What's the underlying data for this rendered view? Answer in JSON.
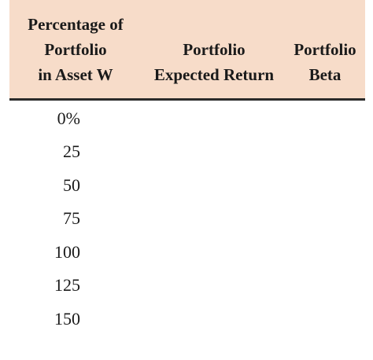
{
  "table": {
    "headers": {
      "col1": [
        "Percentage of",
        "Portfolio",
        "in Asset W"
      ],
      "col2": [
        "Portfolio",
        "Expected Return"
      ],
      "col3": [
        "Portfolio",
        "Beta"
      ]
    },
    "rows": [
      "0%",
      "25",
      "50",
      "75",
      "100",
      "125",
      "150"
    ]
  },
  "colors": {
    "header_bg": "#f7dcc9",
    "rule": "#2b2b2b",
    "text": "#1a1a1a"
  }
}
